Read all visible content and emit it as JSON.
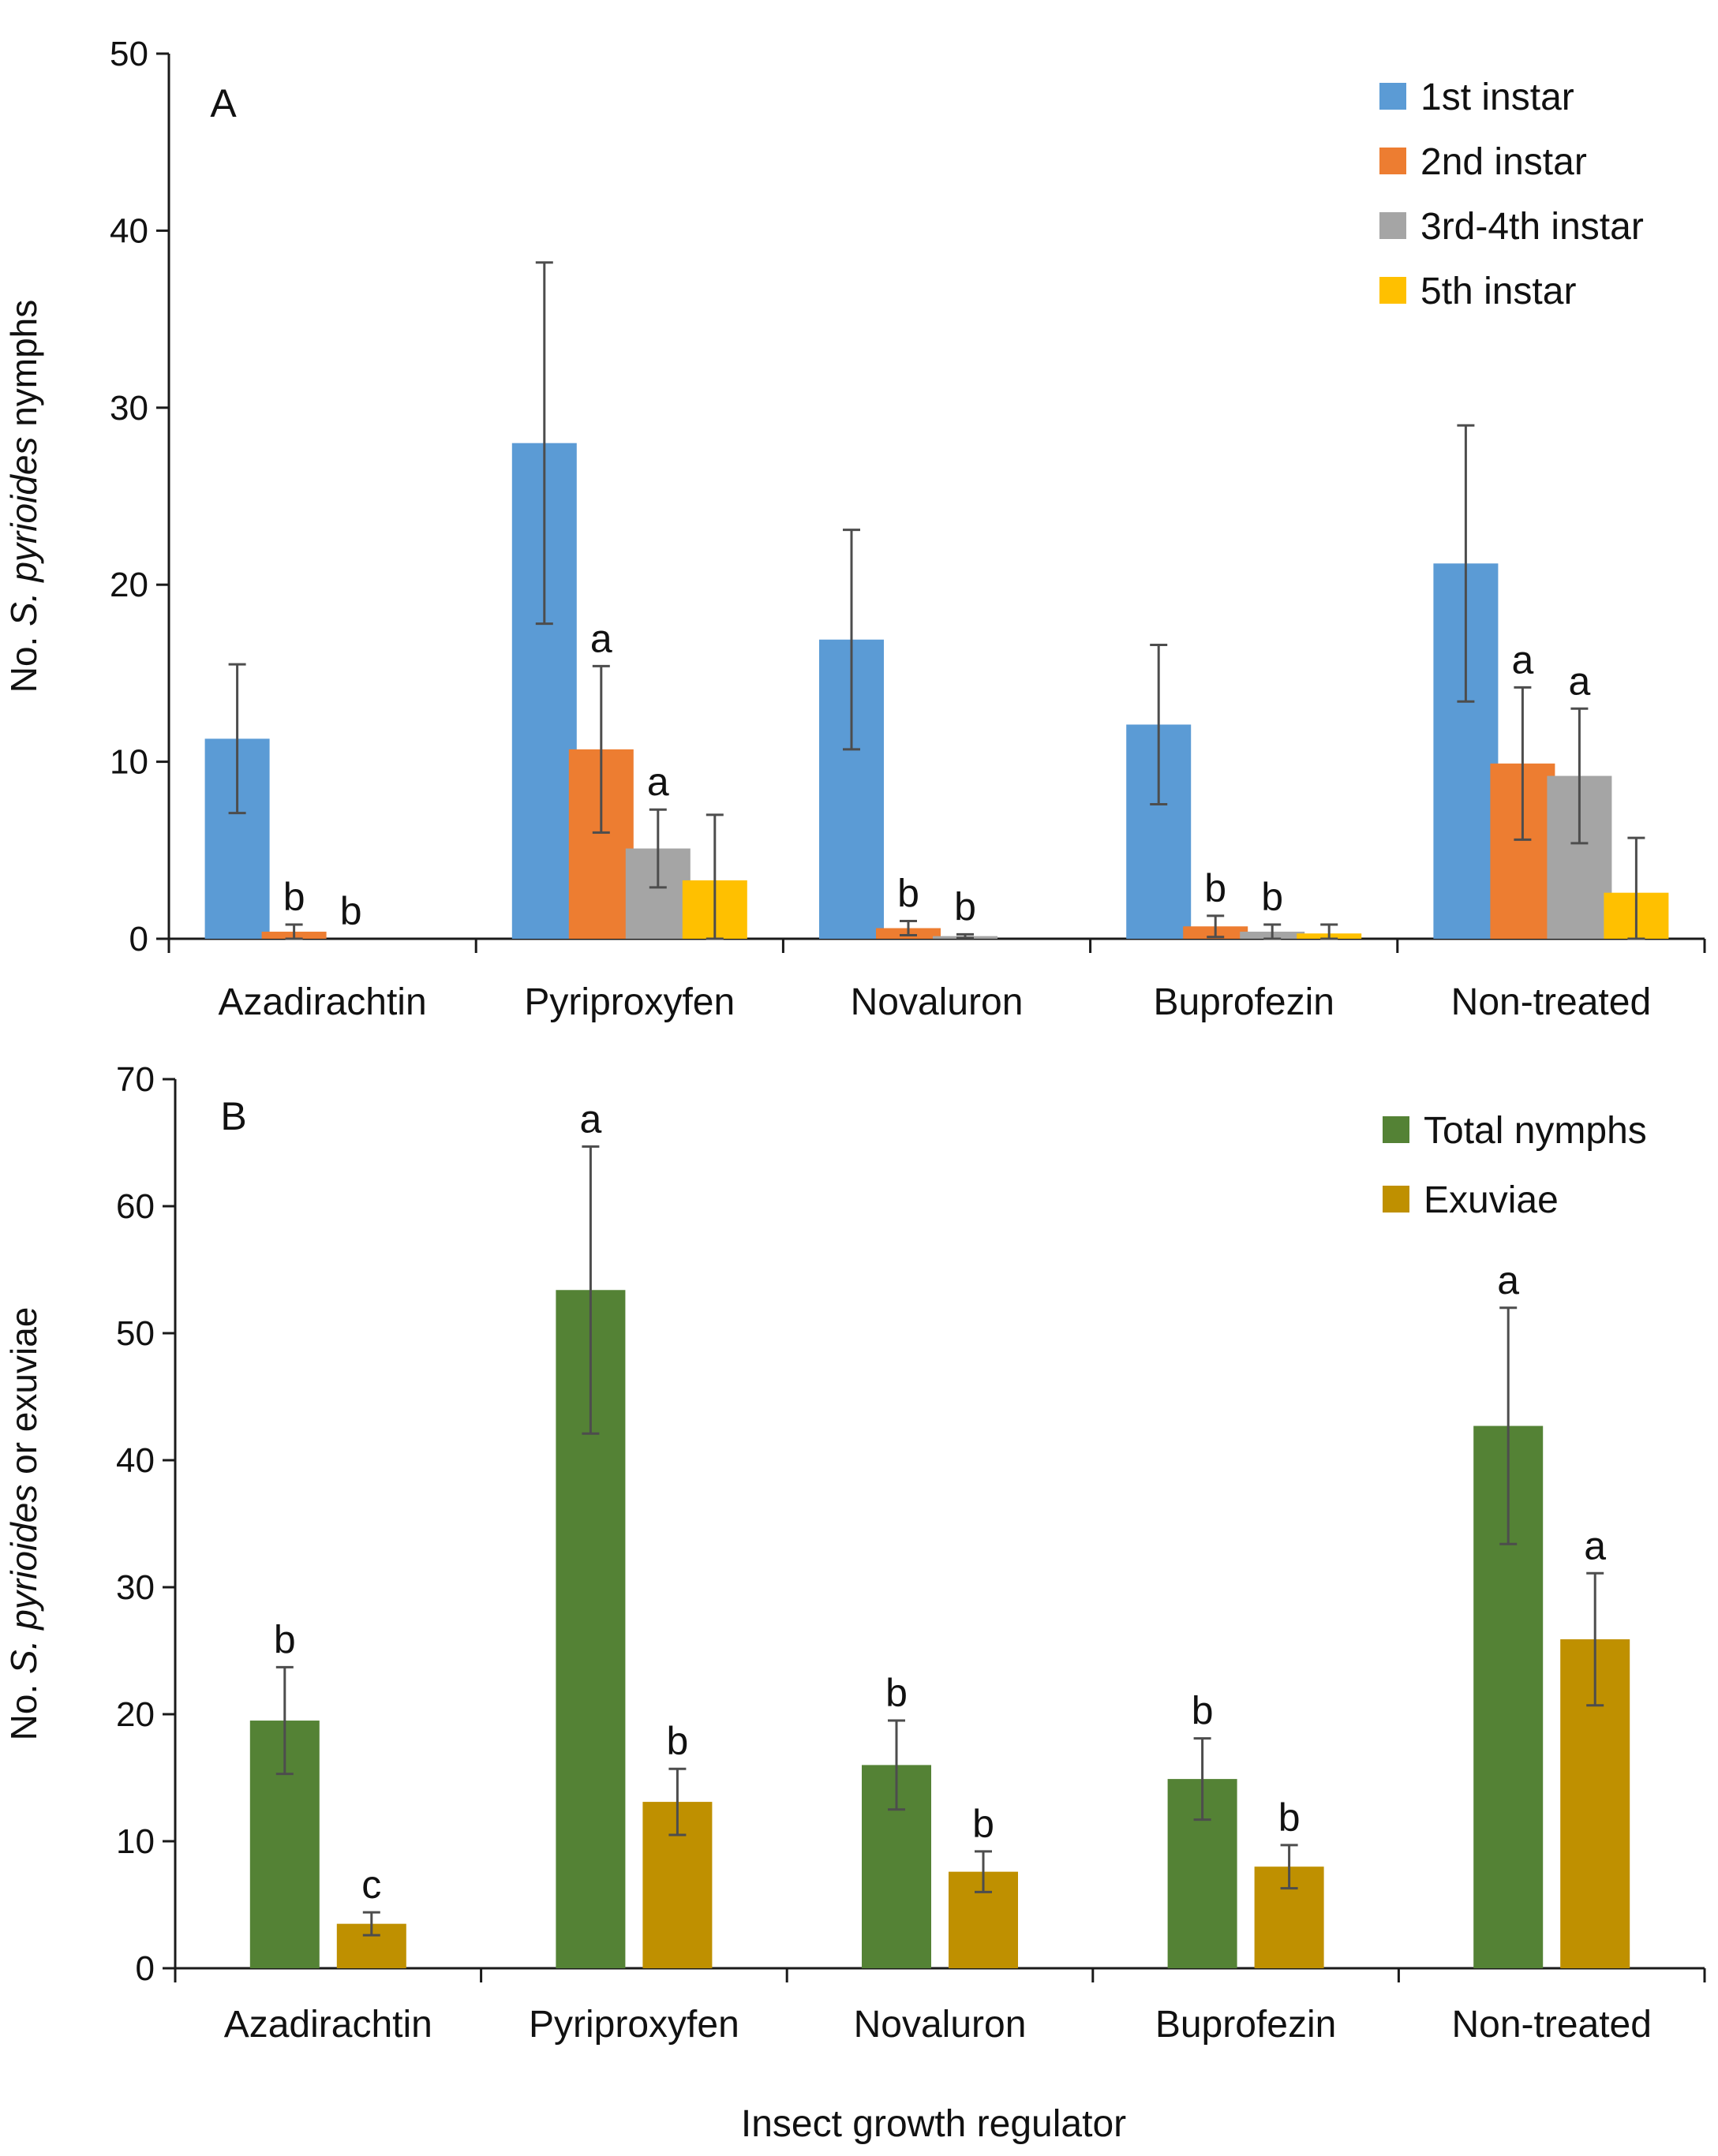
{
  "figure": {
    "x_axis_title": "Insect growth regulator"
  },
  "chart_data": [
    {
      "id": "A",
      "type": "bar",
      "panel_label": "A",
      "ylabel": {
        "prefix": "No. ",
        "italic": "S. pyrioides",
        "suffix": " nymphs"
      },
      "ylim": [
        0,
        50
      ],
      "yticks": [
        0,
        10,
        20,
        30,
        40,
        50
      ],
      "categories": [
        "Azadirachtin",
        "Pyriproxyfen",
        "Novaluron",
        "Buprofezin",
        "Non-treated"
      ],
      "legend_position": "top-right",
      "series": [
        {
          "name": "1st instar",
          "color": "#5B9BD5",
          "values": [
            11.3,
            28.0,
            16.9,
            12.1,
            21.2
          ],
          "errors": [
            4.2,
            10.2,
            6.2,
            4.5,
            7.8
          ],
          "labels": [
            "",
            "",
            "",
            "",
            ""
          ]
        },
        {
          "name": "2nd instar",
          "color": "#ED7D31",
          "values": [
            0.4,
            10.7,
            0.6,
            0.7,
            9.9
          ],
          "errors": [
            0.4,
            4.7,
            0.4,
            0.6,
            4.3
          ],
          "labels": [
            "b",
            "a",
            "b",
            "b",
            "a"
          ]
        },
        {
          "name": "3rd-4th instar",
          "color": "#A5A5A5",
          "values": [
            0.0,
            5.1,
            0.15,
            0.4,
            9.2
          ],
          "errors": [
            0.0,
            2.2,
            0.1,
            0.4,
            3.8
          ],
          "labels": [
            "b",
            "a",
            "b",
            "b",
            "a"
          ]
        },
        {
          "name": "5th instar",
          "color": "#FFC000",
          "values": [
            0.0,
            3.3,
            0.0,
            0.3,
            2.6
          ],
          "errors": [
            0.0,
            3.7,
            0.0,
            0.5,
            3.1
          ],
          "labels": [
            "",
            "",
            "",
            "",
            ""
          ]
        }
      ]
    },
    {
      "id": "B",
      "type": "bar",
      "panel_label": "B",
      "ylabel": {
        "prefix": "No. ",
        "italic": "S. pyrioides",
        "suffix": " or exuviae"
      },
      "ylim": [
        0,
        70
      ],
      "yticks": [
        0,
        10,
        20,
        30,
        40,
        50,
        60,
        70
      ],
      "categories": [
        "Azadirachtin",
        "Pyriproxyfen",
        "Novaluron",
        "Buprofezin",
        "Non-treated"
      ],
      "legend_position": "top-right",
      "series": [
        {
          "name": "Total nymphs",
          "color": "#548235",
          "values": [
            19.5,
            53.4,
            16.0,
            14.9,
            42.7
          ],
          "errors": [
            4.2,
            11.3,
            3.5,
            3.2,
            9.3
          ],
          "labels": [
            "b",
            "a",
            "b",
            "b",
            "a"
          ]
        },
        {
          "name": "Exuviae",
          "color": "#BF9000",
          "values": [
            3.5,
            13.1,
            7.6,
            8.0,
            25.9
          ],
          "errors": [
            0.9,
            2.6,
            1.6,
            1.7,
            5.2
          ],
          "labels": [
            "c",
            "b",
            "b",
            "b",
            "a"
          ]
        }
      ]
    }
  ]
}
